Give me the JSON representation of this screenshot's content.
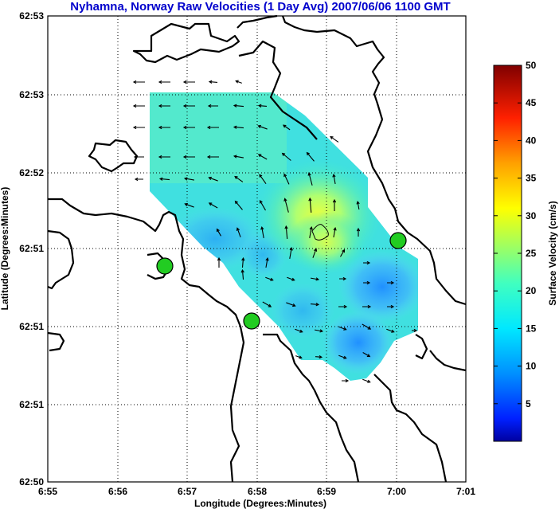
{
  "chart_data": {
    "type": "vector_field_contour",
    "title": "Nyhamna, Norway Raw Velocities (1 Day Avg) 2007/06/06 1100 GMT",
    "xlabel": "Longitude (Degrees:Minutes)",
    "ylabel": "Latitude (Degrees:Minutes)",
    "x_ticks": [
      "6:55",
      "6:56",
      "6:57",
      "6:58",
      "6:59",
      "7:00",
      "7:01"
    ],
    "y_ticks": [
      "62:50",
      "62:51",
      "62:51",
      "62:51",
      "62:52",
      "62:53",
      "62:53"
    ],
    "xlim": [
      "6:55",
      "7:01"
    ],
    "ylim": [
      "62:50",
      "62:53"
    ],
    "grid": true,
    "colorbar": {
      "label": "Surface Velocity (cm/s)",
      "ticks": [
        5,
        10,
        15,
        20,
        25,
        30,
        35,
        40,
        45,
        50
      ],
      "range": [
        0,
        50
      ],
      "colormap": "jet"
    },
    "stations": [
      {
        "lon": "6:56.7",
        "lat": "62:51.5",
        "color": "#22cc22"
      },
      {
        "lon": "6:57.9",
        "lat": "62:51.0",
        "color": "#22cc22"
      },
      {
        "lon": "7:00.0",
        "lat": "62:51.0",
        "color": "#22cc22"
      }
    ],
    "colors": {
      "title": "#0000cc",
      "station": "#22cc22",
      "coastline": "#000000"
    }
  }
}
